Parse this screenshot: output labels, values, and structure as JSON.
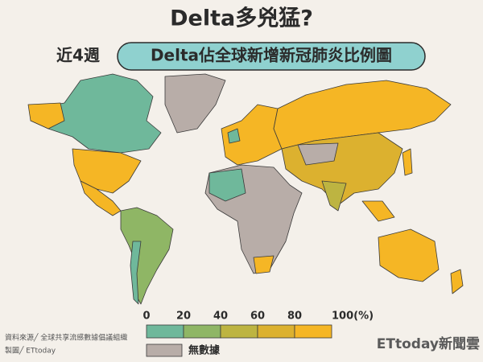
{
  "header": {
    "title": "Delta多兇猛?",
    "subtitle_prefix": "近4週",
    "subtitle": "Delta佔全球新增新冠肺炎比例圖"
  },
  "legend": {
    "ticks": [
      0,
      20,
      40,
      60,
      80,
      {
        "value": 100,
        "label": "100(%)"
      }
    ],
    "colors": [
      "#6fb89b",
      "#8fb665",
      "#bdb441",
      "#dcb12f",
      "#f5b625"
    ],
    "no_data": "無數據",
    "no_data_color": "#b8ada8"
  },
  "footer": {
    "source": "資料來源╱ 全球共享流感數據倡議組織",
    "credit": "製圖╱ ETtoday",
    "logo": "ETtoday新聞雲"
  }
}
